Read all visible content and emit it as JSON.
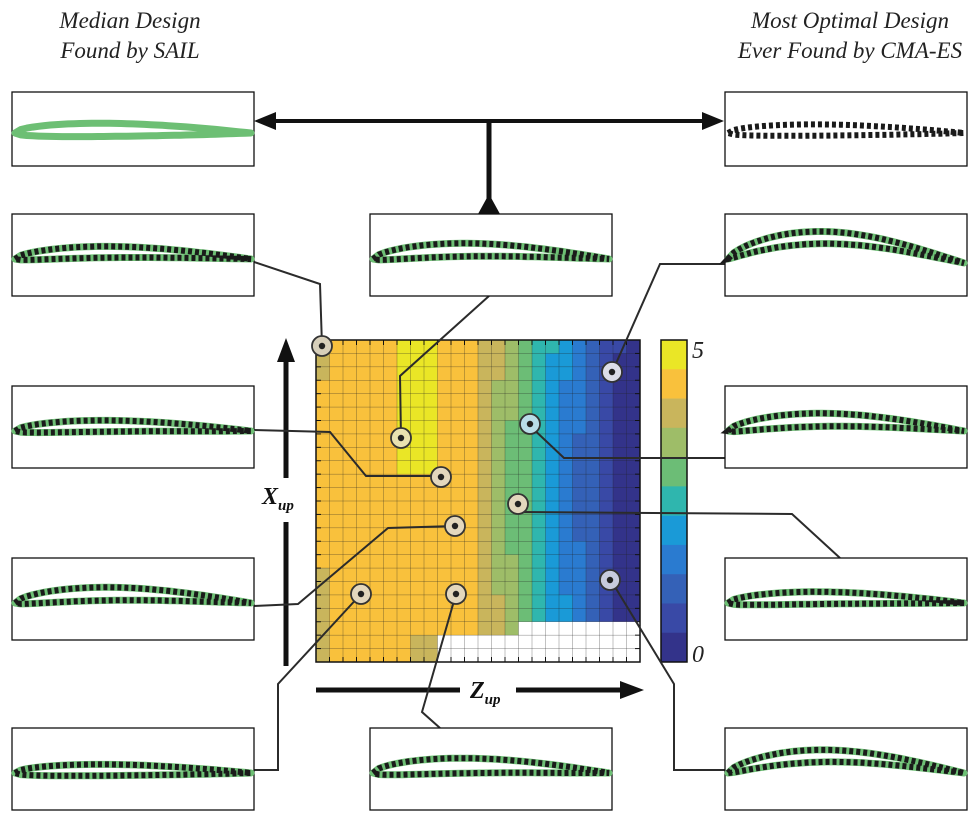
{
  "titles": {
    "left_line1": "Median Design",
    "left_line2": "Found by SAIL",
    "right_line1": "Most Optimal Design",
    "right_line2": "Ever Found by CMA-ES"
  },
  "axes": {
    "x_main": "Z",
    "x_sub": "up",
    "y_main": "X",
    "y_sub": "up"
  },
  "colorbar": {
    "max_label": "5",
    "min_label": "0",
    "colors": [
      "#eae626",
      "#f9c13c",
      "#c9b55c",
      "#9ebd68",
      "#6cbd76",
      "#2fb6ae",
      "#1a9ad7",
      "#2a7bd0",
      "#3461b7",
      "#3949a6",
      "#33338a"
    ]
  },
  "colors": {
    "foil_green": "#6dbf74",
    "foil_dash": "#1a1a1a",
    "leader": "#2b2b2b",
    "grid_line": "#222222"
  }
}
